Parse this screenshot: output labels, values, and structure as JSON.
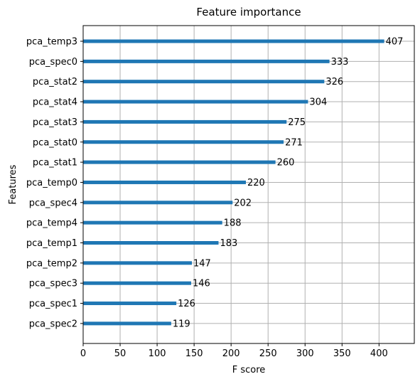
{
  "chart_data": {
    "type": "bar",
    "orientation": "horizontal",
    "title": "Feature importance",
    "xlabel": "F score",
    "ylabel": "Features",
    "categories": [
      "pca_temp3",
      "pca_spec0",
      "pca_stat2",
      "pca_stat4",
      "pca_stat3",
      "pca_stat0",
      "pca_stat1",
      "pca_temp0",
      "pca_spec4",
      "pca_temp4",
      "pca_temp1",
      "pca_temp2",
      "pca_spec3",
      "pca_spec1",
      "pca_spec2"
    ],
    "values": [
      407,
      333,
      326,
      304,
      275,
      271,
      260,
      220,
      202,
      188,
      183,
      147,
      146,
      126,
      119
    ],
    "data_labels": [
      "407",
      "333",
      "326",
      "304",
      "275",
      "271",
      "260",
      "220",
      "202",
      "188",
      "183",
      "147",
      "146",
      "126",
      "119"
    ],
    "xlim": [
      0,
      447.7
    ],
    "xticks": [
      0,
      50,
      100,
      150,
      200,
      250,
      300,
      350,
      400
    ],
    "xtick_labels": [
      "0",
      "50",
      "100",
      "150",
      "200",
      "250",
      "300",
      "350",
      "400"
    ],
    "grid": true,
    "bar_color": "#1f77b4",
    "grid_color": "#b0b0b0"
  }
}
